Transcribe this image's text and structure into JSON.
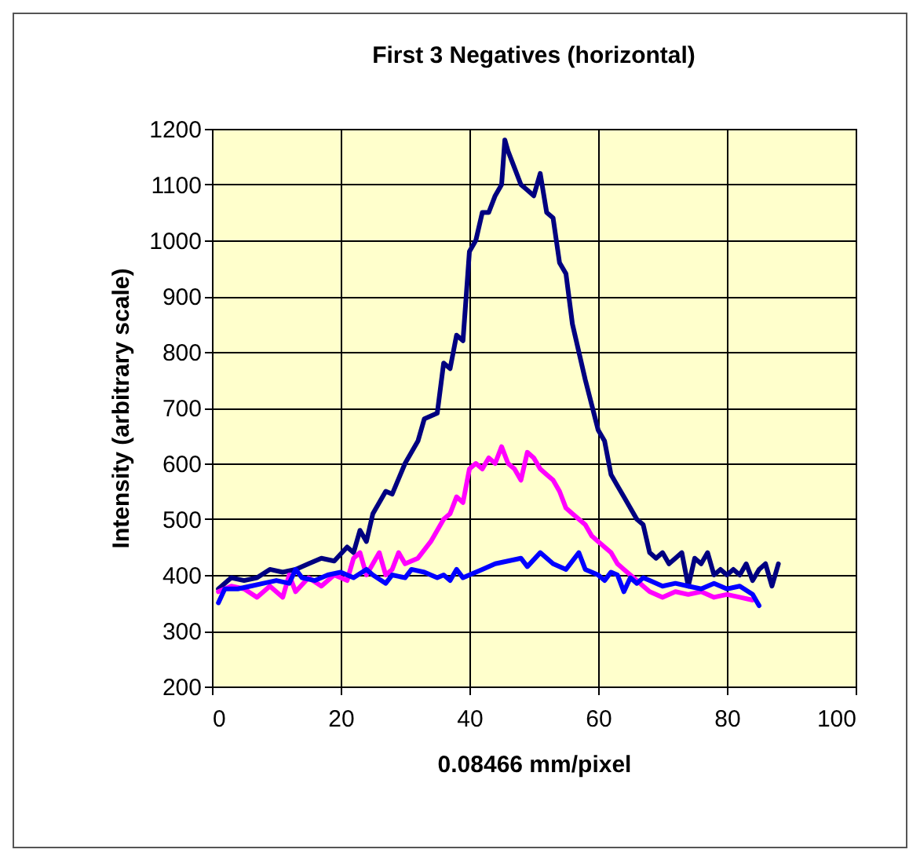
{
  "chart_data": {
    "type": "line",
    "title": "First 3 Negatives (horizontal)",
    "xlabel": "0.08466 mm/pixel",
    "ylabel": "Intensity (arbitrary scale)",
    "xlim": [
      0,
      100
    ],
    "xticks": [
      0,
      20,
      40,
      60,
      80,
      100
    ],
    "ylim": [
      200,
      1200
    ],
    "yticks": [
      200,
      300,
      400,
      500,
      600,
      700,
      800,
      900,
      1000,
      1100,
      1200
    ],
    "grid": true,
    "legend": false,
    "marker": "none",
    "line_style": "solid",
    "series": [
      {
        "color": "#000080",
        "x": [
          1,
          3,
          5,
          7,
          9,
          11,
          13,
          15,
          17,
          19,
          21,
          22,
          23,
          24,
          25,
          27,
          28,
          30,
          32,
          33,
          35,
          36,
          37,
          38,
          39,
          40,
          41,
          42,
          43,
          44,
          45,
          45.5,
          46,
          47,
          48,
          49,
          50,
          51,
          52,
          53,
          54,
          55,
          56,
          58,
          60,
          61,
          62,
          63,
          64,
          66,
          67,
          68,
          69,
          70,
          71,
          72,
          73,
          74,
          75,
          76,
          77,
          78,
          79,
          80,
          81,
          82,
          83,
          84,
          85,
          86,
          87,
          88
        ],
        "values": [
          375,
          395,
          390,
          395,
          410,
          405,
          410,
          420,
          430,
          425,
          450,
          440,
          480,
          460,
          510,
          550,
          545,
          600,
          640,
          680,
          690,
          780,
          770,
          830,
          820,
          980,
          1000,
          1050,
          1050,
          1080,
          1100,
          1180,
          1160,
          1130,
          1100,
          1090,
          1080,
          1120,
          1050,
          1040,
          960,
          940,
          850,
          750,
          660,
          640,
          580,
          560,
          540,
          500,
          490,
          440,
          430,
          440,
          420,
          430,
          440,
          380,
          430,
          420,
          440,
          400,
          410,
          400,
          410,
          400,
          420,
          390,
          410,
          420,
          380,
          420
        ]
      },
      {
        "color": "#ff00ff",
        "x": [
          1,
          3,
          5,
          7,
          9,
          11,
          12,
          13,
          15,
          17,
          19,
          21,
          22,
          23,
          24,
          25,
          26,
          27,
          28,
          29,
          30,
          32,
          34,
          36,
          37,
          38,
          39,
          40,
          41,
          42,
          43,
          44,
          45,
          46,
          47,
          48,
          49,
          50,
          51,
          52,
          53,
          54,
          55,
          56,
          57,
          58,
          59,
          60,
          61,
          62,
          63,
          64,
          65,
          66,
          67,
          68,
          70,
          72,
          74,
          76,
          78,
          80,
          82,
          84
        ],
        "values": [
          370,
          380,
          375,
          360,
          380,
          360,
          400,
          370,
          395,
          380,
          400,
          390,
          430,
          440,
          400,
          420,
          440,
          400,
          410,
          440,
          420,
          430,
          460,
          500,
          510,
          540,
          530,
          590,
          600,
          590,
          610,
          600,
          630,
          600,
          590,
          570,
          620,
          610,
          590,
          580,
          570,
          550,
          520,
          510,
          500,
          490,
          470,
          460,
          450,
          440,
          420,
          410,
          400,
          390,
          380,
          370,
          360,
          370,
          365,
          370,
          360,
          365,
          360,
          355
        ]
      },
      {
        "color": "#0000ff",
        "x": [
          1,
          2,
          4,
          6,
          8,
          10,
          12,
          13,
          14,
          16,
          18,
          20,
          22,
          24,
          25,
          27,
          28,
          30,
          31,
          33,
          35,
          36,
          37,
          38,
          39,
          40,
          42,
          44,
          46,
          48,
          49,
          51,
          53,
          55,
          57,
          58,
          60,
          61,
          62,
          63,
          64,
          65,
          66,
          67,
          68,
          70,
          72,
          74,
          76,
          78,
          80,
          82,
          84,
          85
        ],
        "values": [
          350,
          375,
          375,
          380,
          385,
          390,
          385,
          410,
          395,
          390,
          400,
          405,
          395,
          410,
          400,
          385,
          400,
          395,
          410,
          405,
          395,
          400,
          390,
          410,
          395,
          400,
          410,
          420,
          425,
          430,
          415,
          440,
          420,
          410,
          440,
          410,
          400,
          390,
          405,
          400,
          370,
          395,
          385,
          395,
          390,
          380,
          385,
          380,
          375,
          385,
          375,
          380,
          365,
          345
        ]
      }
    ]
  }
}
